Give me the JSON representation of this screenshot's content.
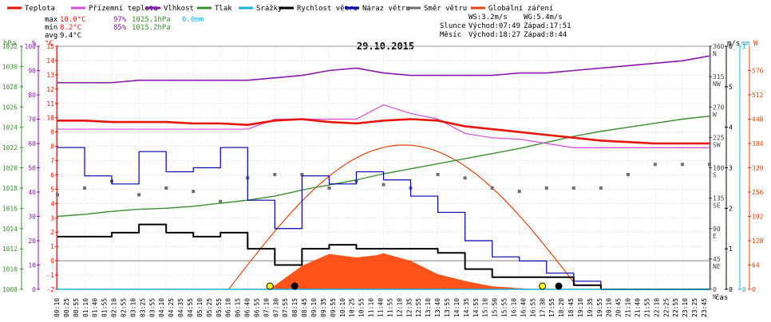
{
  "legend": [
    {
      "label": "Teplota",
      "color": "#e8150a"
    },
    {
      "label": "Přízemní teplota",
      "color": "#d44bd4"
    },
    {
      "label": "Vlhkost",
      "color": "#8a18b0"
    },
    {
      "label": "Tlak",
      "color": "#3a8f2e"
    },
    {
      "label": "Srážky",
      "color": "#1ab0d8"
    },
    {
      "label": "Rychlost větru",
      "color": "#000000"
    },
    {
      "label": "Náraz větru",
      "color": "#0000b0"
    },
    {
      "label": "Směr větru",
      "color": "#6e6e6e"
    },
    {
      "label": "Globální záření",
      "color": "#e8420a"
    }
  ],
  "stats": {
    "max": {
      "label": "max",
      "temp": "10.0°C",
      "hum": "97%",
      "press": "1025.1hPa",
      "rain": "0.0mm"
    },
    "min": {
      "label": "min",
      "temp": "8.2°C",
      "hum": "85%",
      "press": "1015.2hPa"
    },
    "avg": {
      "label": "avg",
      "temp": "9.4°C"
    }
  },
  "wind_info": {
    "ws": "WS:3.2m/s",
    "wg": "WG:5.4m/s"
  },
  "sun": {
    "label": "Slunce",
    "rise": "Východ:07:49",
    "set": "Západ:17:51"
  },
  "moon": {
    "label": "Měsíc",
    "rise": "Východ:18:27",
    "set": "Západ:8:44"
  },
  "title": "29.10.2015",
  "axis_units": {
    "press": "hPa",
    "hum": "%",
    "temp": "°C",
    "wind": "m/s",
    "rain": "mm",
    "rad": "W",
    "time": "čas"
  },
  "chart_data": {
    "type": "line",
    "title": "29.10.2015",
    "xlabel": "čas",
    "x_ticks": [
      "00:10",
      "00:25",
      "00:55",
      "01:10",
      "01:40",
      "01:55",
      "02:10",
      "02:55",
      "03:10",
      "03:25",
      "03:55",
      "04:10",
      "04:25",
      "04:35",
      "04:55",
      "05:10",
      "05:25",
      "05:55",
      "06:10",
      "06:15",
      "06:40",
      "06:55",
      "07:10",
      "07:30",
      "07:55",
      "08:15",
      "08:45",
      "09:10",
      "09:35",
      "09:55",
      "10:10",
      "10:25",
      "10:55",
      "11:10",
      "11:40",
      "11:55",
      "12:10",
      "12:35",
      "12:55",
      "13:10",
      "13:40",
      "13:55",
      "14:10",
      "14:35",
      "14:55",
      "15:10",
      "15:50",
      "15:55",
      "16:10",
      "16:40",
      "16:55",
      "17:30",
      "17:55",
      "18:20",
      "18:45",
      "19:10",
      "19:35",
      "19:55",
      "20:10",
      "20:45",
      "21:10",
      "21:40",
      "21:55",
      "22:10",
      "22:25",
      "22:55",
      "23:10",
      "23:25",
      "23:45"
    ],
    "axes": {
      "pressure_hPa": {
        "range": [
          1008,
          1032
        ],
        "ticks": [
          "1008",
          "1010",
          "1012",
          "1014",
          "1016",
          "1018",
          "1020",
          "1022",
          "1024",
          "1026",
          "1028",
          "1030",
          "1032"
        ]
      },
      "humidity_pct": {
        "range": [
          0,
          100
        ],
        "ticks": [
          "0",
          "10",
          "20",
          "30",
          "40",
          "50",
          "60",
          "70",
          "80",
          "90",
          "100"
        ]
      },
      "temperature_C": {
        "range": [
          -2,
          15
        ],
        "ticks": [
          "-2",
          "-1",
          "0",
          "1",
          "2",
          "3",
          "4",
          "5",
          "6",
          "7",
          "8",
          "9",
          "10",
          "11",
          "12",
          "13",
          "14",
          "15"
        ]
      },
      "wind_direction_deg": {
        "range": [
          0,
          360
        ],
        "ticks": [
          "0",
          "45",
          "90",
          "135",
          "180",
          "225",
          "270",
          "315",
          "360"
        ],
        "labels": [
          "N",
          "NE",
          "E",
          "SE",
          "S",
          "SW",
          "W",
          "NW",
          "N"
        ]
      },
      "wind_speed_ms": {
        "range": [
          0,
          6
        ],
        "ticks": [
          "0",
          "1",
          "2",
          "3",
          "4",
          "5",
          "6"
        ]
      },
      "rain_mm": {
        "range": [
          0,
          1
        ],
        "ticks": [
          "0",
          "1"
        ]
      },
      "radiation_W": {
        "range": [
          0,
          640
        ],
        "ticks": [
          "0",
          "64",
          "128",
          "192",
          "256",
          "320",
          "384",
          "448",
          "512",
          "576"
        ]
      }
    },
    "series": [
      {
        "name": "Teplota",
        "unit": "°C",
        "x": [
          0,
          1,
          2,
          3,
          4,
          5,
          6,
          7,
          8,
          9,
          10,
          11,
          12,
          13,
          14,
          15,
          16,
          17,
          18,
          19,
          20,
          21,
          22,
          23,
          24
        ],
        "values": [
          9.8,
          9.8,
          9.7,
          9.7,
          9.7,
          9.6,
          9.6,
          9.5,
          9.8,
          9.9,
          9.7,
          9.6,
          9.8,
          9.9,
          9.8,
          9.4,
          9.2,
          9.0,
          8.8,
          8.6,
          8.4,
          8.3,
          8.2,
          8.2,
          8.2
        ]
      },
      {
        "name": "Přízemní teplota",
        "unit": "°C",
        "x": [
          0,
          1,
          2,
          3,
          4,
          5,
          6,
          7,
          8,
          9,
          10,
          11,
          12,
          13,
          14,
          15,
          16,
          17,
          18,
          19,
          20,
          21,
          22,
          23,
          24
        ],
        "values": [
          9.2,
          9.2,
          9.2,
          9.2,
          9.2,
          9.2,
          9.2,
          9.2,
          9.9,
          9.9,
          9.9,
          9.9,
          10.9,
          10.3,
          9.9,
          8.9,
          8.6,
          8.5,
          8.2,
          7.9,
          7.9,
          7.9,
          7.9,
          7.9,
          7.9
        ]
      },
      {
        "name": "Vlhkost",
        "unit": "%",
        "x": [
          0,
          1,
          2,
          3,
          4,
          5,
          6,
          7,
          8,
          9,
          10,
          11,
          12,
          13,
          14,
          15,
          16,
          17,
          18,
          19,
          20,
          21,
          22,
          23,
          24
        ],
        "values": [
          85,
          85,
          85,
          86,
          86,
          86,
          86,
          86,
          87,
          88,
          90,
          91,
          89,
          88,
          88,
          88,
          88,
          89,
          89,
          90,
          91,
          92,
          93,
          94,
          96
        ]
      },
      {
        "name": "Tlak",
        "unit": "hPa",
        "x": [
          0,
          1,
          2,
          3,
          4,
          5,
          6,
          7,
          8,
          9,
          10,
          11,
          12,
          13,
          14,
          15,
          16,
          17,
          18,
          19,
          20,
          21,
          22,
          23,
          24
        ],
        "values": [
          1015.2,
          1015.4,
          1015.7,
          1015.9,
          1016.0,
          1016.2,
          1016.5,
          1016.8,
          1017.2,
          1017.8,
          1018.3,
          1018.8,
          1019.4,
          1019.9,
          1020.4,
          1020.9,
          1021.4,
          1021.9,
          1022.5,
          1023.1,
          1023.6,
          1024.0,
          1024.4,
          1024.8,
          1025.1
        ]
      },
      {
        "name": "Rychlost větru",
        "unit": "m/s",
        "x": [
          0,
          1,
          2,
          3,
          4,
          5,
          6,
          7,
          8,
          9,
          10,
          11,
          12,
          13,
          14,
          15,
          16,
          17,
          18,
          19,
          20,
          21,
          22,
          23,
          24
        ],
        "values": [
          1.3,
          1.3,
          1.4,
          1.6,
          1.4,
          1.3,
          1.4,
          1.0,
          0.6,
          1.0,
          1.1,
          1.0,
          1.0,
          1.0,
          0.9,
          0.5,
          0.3,
          0.3,
          0.3,
          0.1,
          0.0,
          0.0,
          0.0,
          0.0,
          0.0
        ]
      },
      {
        "name": "Náraz větru",
        "unit": "m/s",
        "x": [
          0,
          1,
          2,
          3,
          4,
          5,
          6,
          7,
          8,
          9,
          10,
          11,
          12,
          13,
          14,
          15,
          16,
          17,
          18,
          19,
          20,
          21,
          22,
          23,
          24
        ],
        "values": [
          3.5,
          2.8,
          2.6,
          3.4,
          2.9,
          3.0,
          3.5,
          2.2,
          1.5,
          2.8,
          2.6,
          2.9,
          2.7,
          2.3,
          1.9,
          1.2,
          0.8,
          0.7,
          0.4,
          0.2,
          0.0,
          0.0,
          0.0,
          0.0,
          0.0
        ]
      },
      {
        "name": "Směr větru",
        "unit": "°",
        "x": [
          0,
          1,
          2,
          3,
          4,
          5,
          6,
          7,
          8,
          9,
          10,
          11,
          12,
          13,
          14,
          15,
          16,
          17,
          18,
          19,
          20,
          21,
          22,
          23,
          24
        ],
        "values": [
          140,
          150,
          160,
          140,
          150,
          145,
          130,
          165,
          170,
          170,
          150,
          160,
          155,
          150,
          170,
          165,
          150,
          145,
          150,
          150,
          150,
          170,
          185,
          185,
          185
        ]
      },
      {
        "name": "Globální záření",
        "unit": "W",
        "x": [
          7.8,
          9,
          10,
          11,
          11.75,
          12,
          13,
          14,
          15,
          16,
          17.6
        ],
        "values": [
          0,
          62,
          93,
          84,
          90,
          95,
          75,
          40,
          22,
          8,
          0
        ]
      },
      {
        "name": "Srážky",
        "unit": "mm",
        "x": [
          0,
          24
        ],
        "values": [
          0,
          0
        ]
      }
    ]
  }
}
